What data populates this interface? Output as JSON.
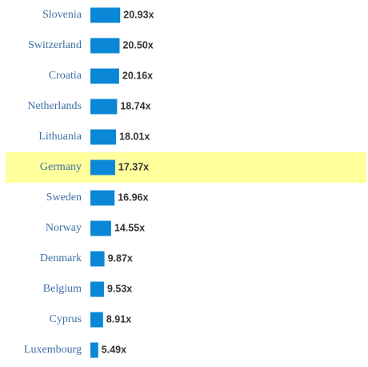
{
  "chart_data": {
    "type": "bar",
    "orientation": "horizontal",
    "categories": [
      "Slovenia",
      "Switzerland",
      "Croatia",
      "Netherlands",
      "Lithuania",
      "Germany",
      "Sweden",
      "Norway",
      "Denmark",
      "Belgium",
      "Cyprus",
      "Luxembourg"
    ],
    "values": [
      20.93,
      20.5,
      20.16,
      18.74,
      18.01,
      17.37,
      16.96,
      14.55,
      9.87,
      9.53,
      8.91,
      5.49
    ],
    "value_labels": [
      "20.93x",
      "20.50x",
      "20.16x",
      "18.74x",
      "18.01x",
      "17.37x",
      "16.96x",
      "14.55x",
      "9.87x",
      "9.53x",
      "8.91x",
      "5.49x"
    ],
    "color": "#0a87d6",
    "highlight": "Germany",
    "highlight_color": "#ffff9c"
  }
}
